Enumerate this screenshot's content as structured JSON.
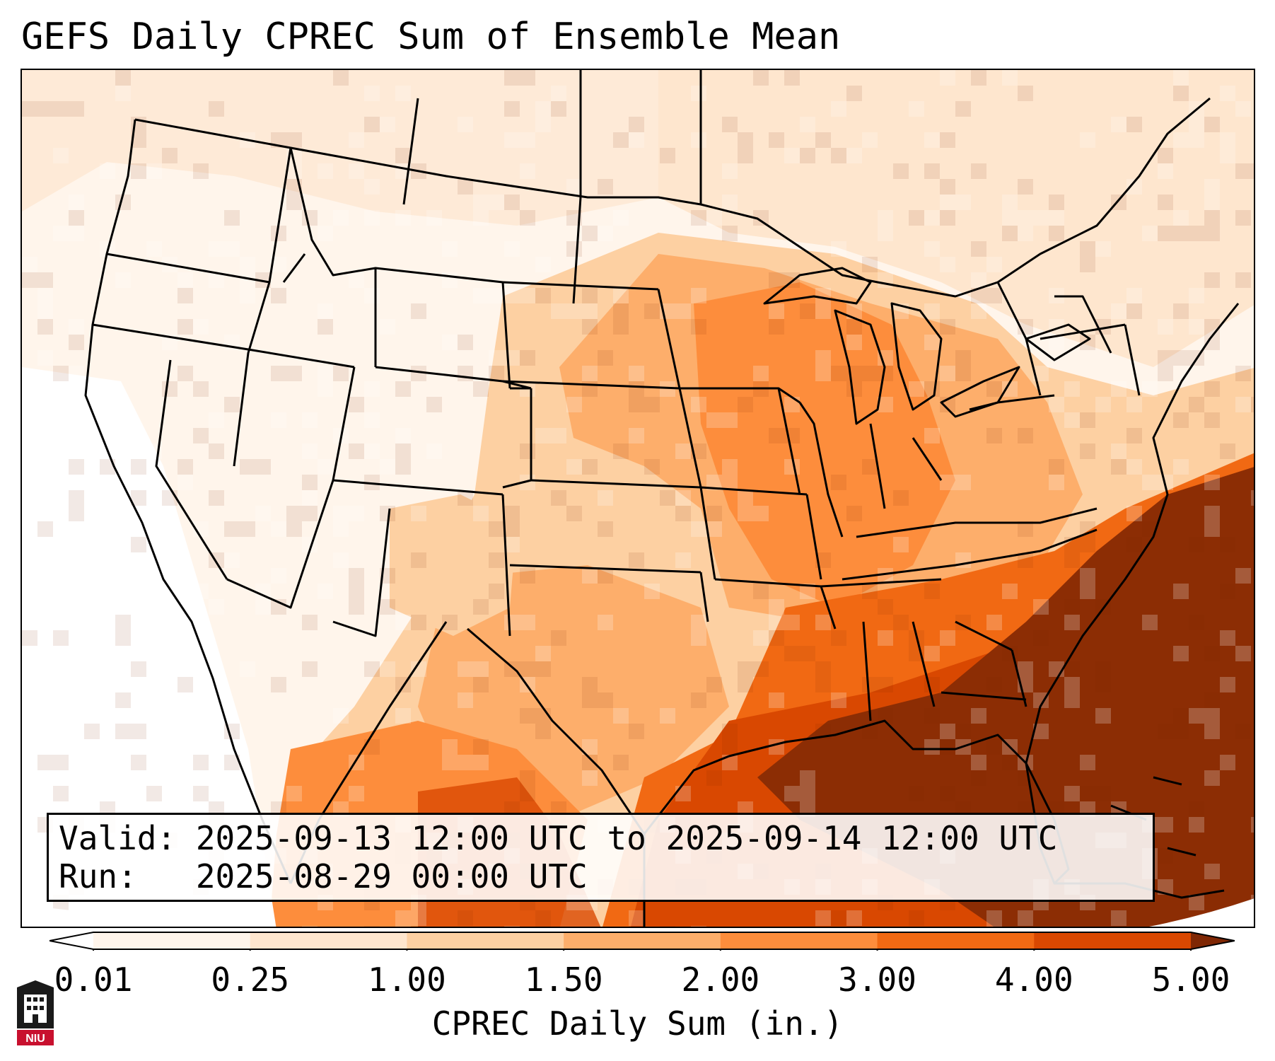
{
  "title": "GEFS Daily CPREC Sum of Ensemble Mean",
  "info": {
    "valid_line": "Valid: 2025-09-13 12:00 UTC to 2025-09-14 12:00 UTC",
    "run_line": "Run:   2025-08-29 00:00 UTC"
  },
  "colorbar": {
    "label": "CPREC Daily Sum (in.)",
    "ticks": [
      "0.01",
      "0.25",
      "1.00",
      "1.50",
      "2.00",
      "3.00",
      "4.00",
      "5.00"
    ],
    "colors": [
      "#fff5eb",
      "#fee6ce",
      "#fdd0a2",
      "#fdae6b",
      "#fd8d3c",
      "#f16913",
      "#d94801",
      "#8c2d04"
    ],
    "under_color": "#ffffff",
    "over_color": "#7f2704"
  },
  "logo": {
    "text": "NIU",
    "color": "#c8102e",
    "icon": "university-building-icon"
  }
}
